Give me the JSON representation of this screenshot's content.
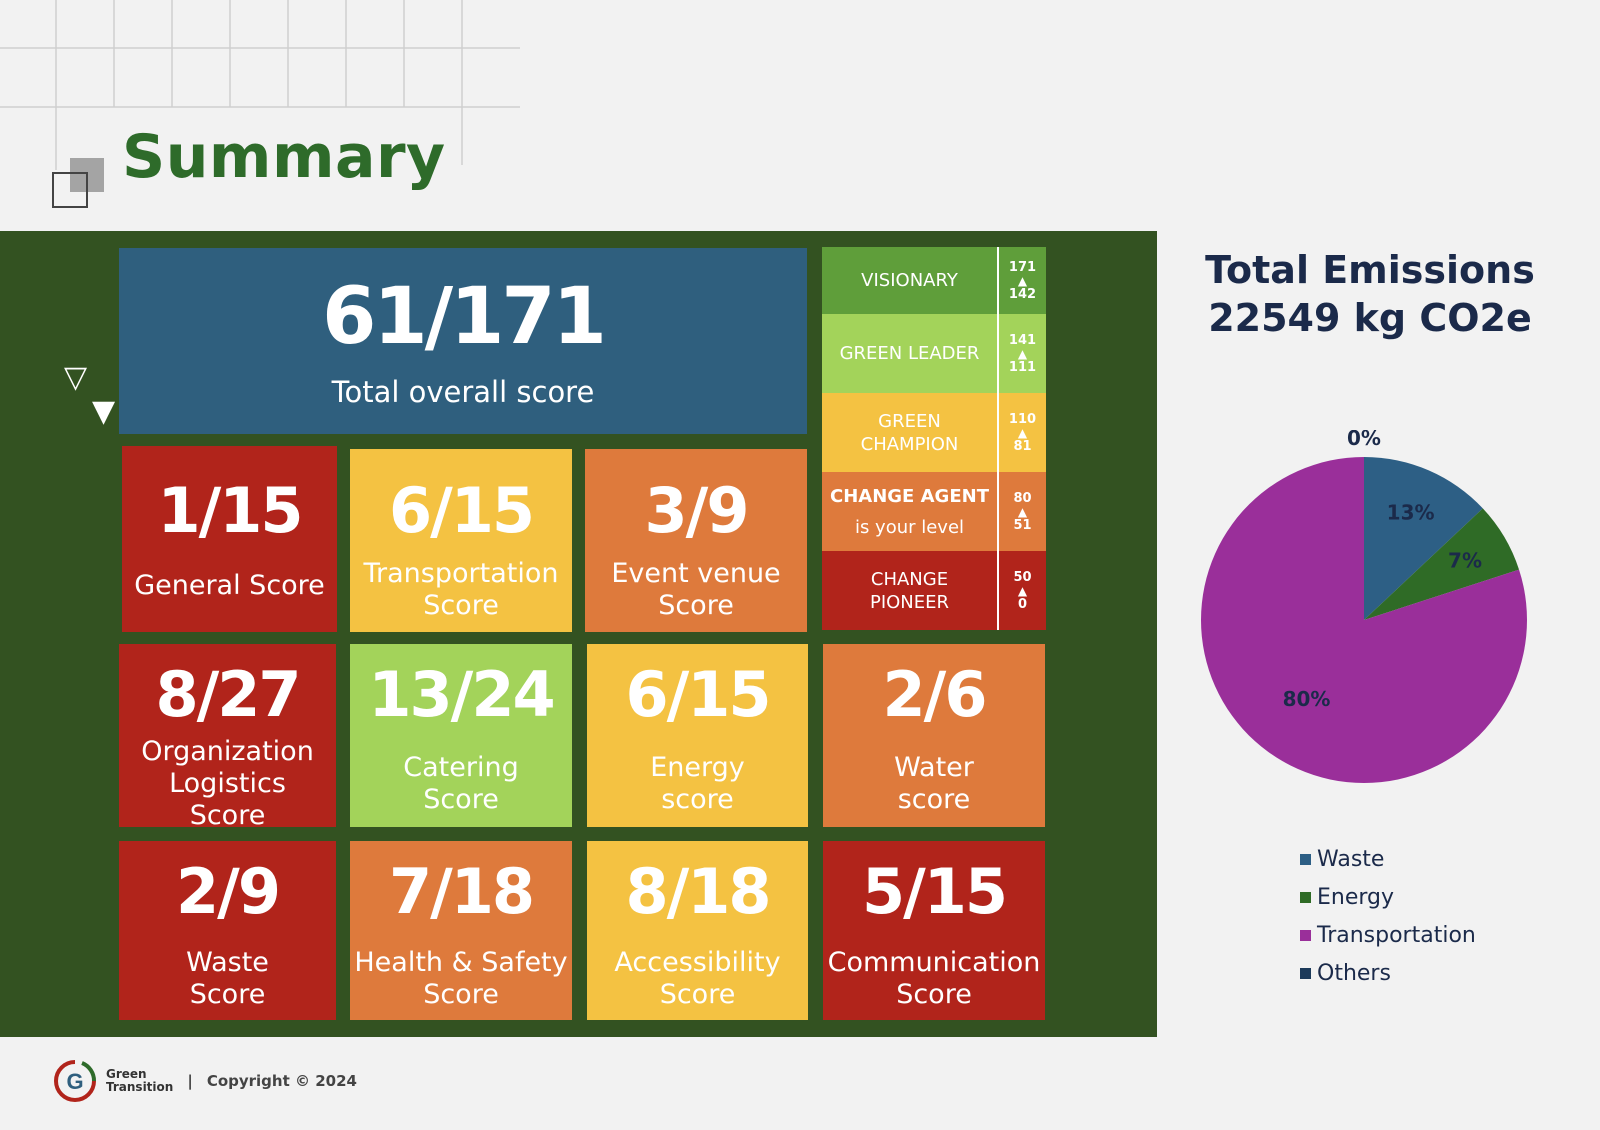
{
  "page": {
    "title": "Summary"
  },
  "total": {
    "value": "61/171",
    "label": "Total overall score"
  },
  "tiles": [
    {
      "value": "1/15",
      "label": "General Score",
      "color": "#b1241b"
    },
    {
      "value": "6/15",
      "label": "Transportation Score",
      "color": "#f4c242"
    },
    {
      "value": "3/9",
      "label": "Event venue Score",
      "color": "#de7a3c"
    },
    {
      "value": "8/27",
      "label": "Organization Logistics Score",
      "color": "#b1241b"
    },
    {
      "value": "13/24",
      "label": "Catering Score",
      "color": "#a3d35a"
    },
    {
      "value": "6/15",
      "label": "Energy score",
      "color": "#f4c242"
    },
    {
      "value": "2/6",
      "label": "Water score",
      "color": "#de7a3c"
    },
    {
      "value": "2/9",
      "label": "Waste Score",
      "color": "#b1241b"
    },
    {
      "value": "7/18",
      "label": "Health & Safety Score",
      "color": "#de7a3c"
    },
    {
      "value": "8/18",
      "label": "Accessibility Score",
      "color": "#f4c242"
    },
    {
      "value": "5/15",
      "label": "Communication Score",
      "color": "#b1241b"
    }
  ],
  "levels": [
    {
      "name": "VISIONARY",
      "sub": "",
      "max": "171",
      "min": "142",
      "color": "#5f9e3a"
    },
    {
      "name": "GREEN LEADER",
      "sub": "",
      "max": "141",
      "min": "111",
      "color": "#a3d35a"
    },
    {
      "name": "GREEN CHAMPION",
      "sub": "",
      "max": "110",
      "min": "81",
      "color": "#f4c242"
    },
    {
      "name": "CHANGE AGENT",
      "sub": "is your level",
      "max": "80",
      "min": "51",
      "color": "#de7a3c"
    },
    {
      "name": "CHANGE PIONEER",
      "sub": "",
      "max": "50",
      "min": "0",
      "color": "#b1241b"
    }
  ],
  "level_arrow": "▲",
  "chart_data": {
    "type": "pie",
    "title": "Total Emissions 22549 kg CO2e",
    "categories": [
      "Waste",
      "Energy",
      "Transportation",
      "Others"
    ],
    "values": [
      13,
      7,
      80,
      0
    ],
    "value_labels": [
      "13%",
      "7%",
      "80%",
      "0%"
    ],
    "colors": [
      "#2d5f85",
      "#2f6b26",
      "#9a2f9a",
      "#1c3a5a"
    ],
    "legend_position": "bottom"
  },
  "footer": {
    "brand_line1": "Green",
    "brand_line2": "Transition",
    "separator": "|",
    "copyright": "Copyright © 2024"
  }
}
